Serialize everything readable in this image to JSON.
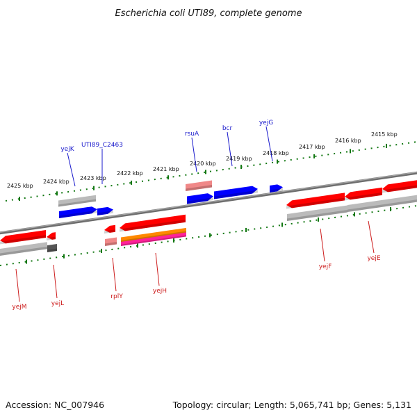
{
  "title": "Escherichia coli UTI89, complete genome",
  "footer": {
    "accession": "Accession: NC_007946",
    "topology": "Topology: circular; Length: 5,065,741 bp; Genes: 5,131"
  },
  "colors": {
    "forward_gene": "#0000ff",
    "reverse_gene": "#ff0000",
    "tick": "#117711",
    "backbone": "#777777",
    "pseudo": "#f08888",
    "orf": "#ff8800",
    "magenta": "#ff2299",
    "gray_feature": "#bbbbbb",
    "dark_feature": "#555555",
    "label_top": "#1a1acc",
    "label_bottom": "#cc1a1a"
  },
  "kbp_labels": [
    "2425 kbp",
    "2424 kbp",
    "2423 kbp",
    "2422 kbp",
    "2421 kbp",
    "2420 kbp",
    "2419 kbp",
    "2418 kbp",
    "2417 kbp",
    "2416 kbp",
    "2415 kbp"
  ],
  "genes_top": [
    "yejK",
    "UTI89_C2463",
    "rsuA",
    "bcr",
    "yejG"
  ],
  "genes_bottom": [
    "yejM",
    "yejL",
    "rplY",
    "yejH",
    "yejF",
    "yejE"
  ]
}
